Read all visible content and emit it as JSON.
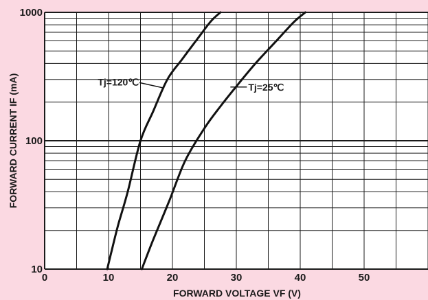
{
  "colors": {
    "background": "#fbd9e2",
    "plot_background": "#ffffff",
    "grid": "#1a1a1a",
    "curve": "#111111",
    "text": "#1a1a1a"
  },
  "chart_data": {
    "type": "line",
    "title": "",
    "xlabel": "FORWARD VOLTAGE VF (V)",
    "ylabel": "FORWARD CURRENT IF (mA)",
    "xlim": [
      0,
      60
    ],
    "ylim": [
      10,
      1000
    ],
    "y_scale": "log",
    "grid": true,
    "legend": "none",
    "x_ticks": [
      {
        "value": 0,
        "label": "0"
      },
      {
        "value": 10,
        "label": "10"
      },
      {
        "value": 20,
        "label": "20"
      },
      {
        "value": 30,
        "label": "30"
      },
      {
        "value": 40,
        "label": "40"
      },
      {
        "value": 50,
        "label": "50"
      }
    ],
    "y_ticks": [
      {
        "value": 10,
        "label": "10"
      },
      {
        "value": 100,
        "label": "100"
      },
      {
        "value": 1000,
        "label": "1000"
      }
    ],
    "x_gridlines": [
      0,
      5,
      10,
      15,
      20,
      25,
      30,
      35,
      40,
      45,
      50,
      55,
      60
    ],
    "y_gridlines": [
      10,
      20,
      30,
      40,
      50,
      60,
      70,
      80,
      90,
      100,
      200,
      300,
      400,
      500,
      600,
      700,
      800,
      900,
      1000
    ],
    "series": [
      {
        "label": "Tj=120℃",
        "x": [
          9.8,
          10.5,
          11.5,
          13,
          15,
          17,
          19.2,
          21.5,
          24,
          26,
          27.5
        ],
        "y": [
          10,
          14,
          22,
          40,
          100,
          170,
          300,
          430,
          630,
          850,
          1000
        ],
        "annotation_at": {
          "x": 18.5,
          "y": 270
        }
      },
      {
        "label": "Tj=25℃",
        "x": [
          15.2,
          17,
          19.5,
          22,
          25,
          27.5,
          30,
          33,
          36,
          39,
          40.8
        ],
        "y": [
          10,
          17,
          34,
          70,
          125,
          185,
          265,
          400,
          580,
          840,
          1000
        ],
        "annotation_at": {
          "x": 29.5,
          "y": 262
        }
      }
    ]
  }
}
